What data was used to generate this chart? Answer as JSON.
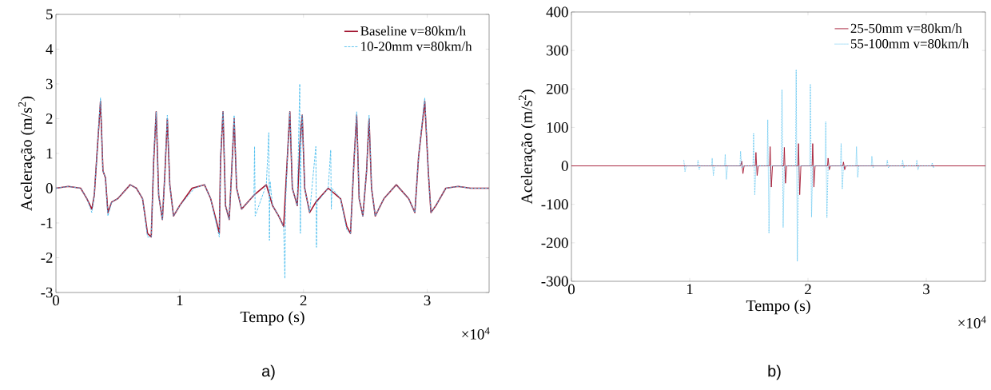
{
  "chart_data": [
    {
      "type": "line",
      "xlabel": "Tempo (s)",
      "ylabel": "Aceleração (m/s$^{2}$)",
      "xlim": [
        0,
        3.5
      ],
      "ylim": [
        -3,
        5
      ],
      "xticks": [
        0,
        1,
        2,
        3
      ],
      "yticks": [
        -3,
        -2,
        -1,
        0,
        1,
        2,
        3,
        4,
        5
      ],
      "legend": "top right",
      "annotations": [
        "×10$^{4}$",
        "a)"
      ],
      "series": [
        {
          "name": "Baseline v=80km/h",
          "color": "#a2142f",
          "line_style": "solid",
          "x": [
            0,
            0.1,
            0.2,
            0.25,
            0.29,
            0.31,
            0.33,
            0.36,
            0.38,
            0.4,
            0.42,
            0.45,
            0.5,
            0.6,
            0.65,
            0.7,
            0.74,
            0.77,
            0.79,
            0.81,
            0.83,
            0.86,
            0.88,
            0.9,
            0.92,
            0.95,
            1.0,
            1.1,
            1.2,
            1.25,
            1.3,
            1.32,
            1.33,
            1.35,
            1.37,
            1.4,
            1.42,
            1.44,
            1.46,
            1.5,
            1.6,
            1.7,
            1.75,
            1.8,
            1.84,
            1.87,
            1.89,
            1.91,
            1.95,
            1.97,
            1.99,
            2.01,
            2.05,
            2.1,
            2.2,
            2.3,
            2.35,
            2.38,
            2.41,
            2.43,
            2.45,
            2.48,
            2.51,
            2.53,
            2.55,
            2.58,
            2.65,
            2.75,
            2.85,
            2.9,
            2.93,
            2.98,
            3.01,
            3.03,
            3.07,
            3.15,
            3.25,
            3.35,
            3.5
          ],
          "values": [
            0,
            0.05,
            0,
            -0.3,
            -0.6,
            -0.2,
            0.9,
            2.5,
            0.5,
            0.3,
            -0.7,
            -0.4,
            -0.3,
            0.1,
            0,
            -0.3,
            -1.3,
            -1.4,
            0.8,
            2.2,
            -0.2,
            -0.9,
            0.4,
            2,
            0.1,
            -0.8,
            -0.5,
            0,
            0.1,
            -0.3,
            -1,
            -1.3,
            0.8,
            2.2,
            -0.5,
            -0.9,
            0.5,
            2,
            0,
            -0.6,
            -0.2,
            0.1,
            -0.5,
            -0.8,
            -1.1,
            0.9,
            2.2,
            0,
            -0.5,
            1.2,
            2.1,
            0,
            -0.7,
            -0.4,
            0,
            -0.3,
            -1.1,
            -1.3,
            0.9,
            2.1,
            -0.3,
            -0.8,
            0.5,
            2,
            0,
            -0.8,
            -0.3,
            0.1,
            -0.3,
            -0.7,
            0.9,
            2.5,
            0.4,
            -0.7,
            -0.5,
            0,
            0.05,
            0,
            0
          ]
        },
        {
          "name": "10-20mm v=80km/h",
          "color": "#4dbeee",
          "line_style": "dashed",
          "x": [
            0,
            0.1,
            0.2,
            0.25,
            0.29,
            0.31,
            0.33,
            0.36,
            0.38,
            0.4,
            0.42,
            0.45,
            0.5,
            0.6,
            0.65,
            0.7,
            0.74,
            0.77,
            0.79,
            0.81,
            0.83,
            0.86,
            0.88,
            0.9,
            0.92,
            0.95,
            1.0,
            1.12,
            1.2,
            1.25,
            1.3,
            1.32,
            1.33,
            1.35,
            1.37,
            1.4,
            1.42,
            1.44,
            1.46,
            1.5,
            1.6,
            1.605,
            1.61,
            1.7,
            1.72,
            1.725,
            1.73,
            1.75,
            1.8,
            1.84,
            1.85,
            1.855,
            1.87,
            1.89,
            1.91,
            1.95,
            1.97,
            1.975,
            1.98,
            1.99,
            2.01,
            2.05,
            2.1,
            2.105,
            2.11,
            2.2,
            2.22,
            2.225,
            2.23,
            2.3,
            2.35,
            2.38,
            2.41,
            2.43,
            2.45,
            2.48,
            2.51,
            2.53,
            2.55,
            2.58,
            2.65,
            2.75,
            2.85,
            2.9,
            2.93,
            2.98,
            3.01,
            3.03,
            3.07,
            3.15,
            3.25,
            3.35,
            3.5
          ],
          "values": [
            0,
            0.05,
            0,
            -0.3,
            -0.7,
            -0.2,
            0.9,
            2.6,
            0.5,
            0.3,
            -0.8,
            -0.4,
            -0.3,
            0.1,
            0,
            -0.3,
            -1.4,
            -1.4,
            0.9,
            2.2,
            -0.2,
            -0.9,
            0.4,
            2.1,
            0.1,
            -0.8,
            -0.5,
            0,
            0.1,
            -0.3,
            -1.1,
            -1.4,
            0.9,
            2.2,
            -0.5,
            -0.9,
            0.5,
            2.1,
            0,
            -0.6,
            -0.2,
            1.2,
            -0.8,
            0.1,
            1.6,
            -1.5,
            0.2,
            -0.5,
            -0.8,
            -1.1,
            -2.6,
            -0.5,
            0.9,
            2.2,
            0,
            -0.5,
            3,
            -1.3,
            1.2,
            2.1,
            0,
            -0.7,
            1.2,
            -1.7,
            -0.4,
            0,
            1.1,
            -0.6,
            0,
            -0.3,
            -1.2,
            -1.3,
            0.9,
            2.2,
            -0.3,
            -0.8,
            0.5,
            2.1,
            0,
            -0.8,
            -0.3,
            0.1,
            -0.3,
            -0.7,
            0.9,
            2.6,
            0.4,
            -0.7,
            -0.5,
            0,
            0.05,
            0,
            0
          ]
        }
      ]
    },
    {
      "type": "line",
      "xlabel": "Tempo (s)",
      "ylabel": "Aceleração (m/s$^{2}$)",
      "xlim": [
        0,
        3.5
      ],
      "ylim": [
        -300,
        400
      ],
      "xticks": [
        0,
        1,
        2,
        3
      ],
      "yticks": [
        -300,
        -200,
        -100,
        0,
        100,
        200,
        300,
        400
      ],
      "legend": "top right",
      "annotations": [
        "×10$^{4}$",
        "b)"
      ],
      "series": [
        {
          "name": "25-50mm v=80km/h",
          "color": "#a2142f",
          "line_style": "solid",
          "x": [
            0,
            0.5,
            1.0,
            1.43,
            1.44,
            1.45,
            1.46,
            1.555,
            1.56,
            1.57,
            1.58,
            1.675,
            1.68,
            1.69,
            1.7,
            1.795,
            1.8,
            1.81,
            1.82,
            1.915,
            1.92,
            1.93,
            1.94,
            2.035,
            2.04,
            2.05,
            2.06,
            2.165,
            2.17,
            2.18,
            2.19,
            2.295,
            2.3,
            2.31,
            2.32,
            2.5,
            3.0,
            3.5
          ],
          "values": [
            0,
            0,
            0,
            0,
            12,
            -20,
            0,
            0,
            35,
            -25,
            0,
            0,
            50,
            -55,
            0,
            0,
            48,
            -45,
            0,
            0,
            58,
            -75,
            0,
            0,
            58,
            -55,
            0,
            0,
            20,
            -10,
            0,
            0,
            10,
            -10,
            0,
            0,
            0,
            0
          ]
        },
        {
          "name": "55-100mm v=80km/h",
          "color": "#4dbeee",
          "line_style": "dotted",
          "x": [
            0.95,
            0.96,
            0.97,
            1.065,
            1.07,
            1.08,
            1.09,
            1.185,
            1.19,
            1.2,
            1.21,
            1.295,
            1.3,
            1.31,
            1.32,
            1.425,
            1.43,
            1.44,
            1.45,
            1.535,
            1.54,
            1.55,
            1.56,
            1.655,
            1.66,
            1.67,
            1.68,
            1.775,
            1.78,
            1.79,
            1.8,
            1.895,
            1.9,
            1.91,
            1.92,
            2.015,
            2.02,
            2.03,
            2.04,
            2.145,
            2.15,
            2.16,
            2.17,
            2.275,
            2.28,
            2.29,
            2.3,
            2.405,
            2.41,
            2.42,
            2.43,
            2.535,
            2.54,
            2.55,
            2.56,
            2.665,
            2.67,
            2.68,
            2.69,
            2.795,
            2.8,
            2.81,
            2.82,
            2.915,
            2.92,
            2.93,
            2.94,
            3.045,
            3.05,
            3.06,
            3.07
          ],
          "values": [
            15,
            -15,
            0,
            0,
            15,
            -10,
            0,
            0,
            20,
            -25,
            0,
            0,
            30,
            -35,
            0,
            0,
            38,
            -5,
            0,
            0,
            85,
            -75,
            0,
            0,
            120,
            -175,
            0,
            0,
            198,
            -160,
            0,
            0,
            250,
            -248,
            0,
            0,
            212,
            -133,
            0,
            0,
            115,
            -135,
            0,
            0,
            58,
            -60,
            0,
            0,
            50,
            -30,
            0,
            0,
            25,
            -5,
            0,
            0,
            15,
            -5,
            0,
            0,
            15,
            -5,
            0,
            0,
            15,
            -10,
            0,
            0,
            8,
            -5,
            0
          ]
        }
      ]
    }
  ]
}
